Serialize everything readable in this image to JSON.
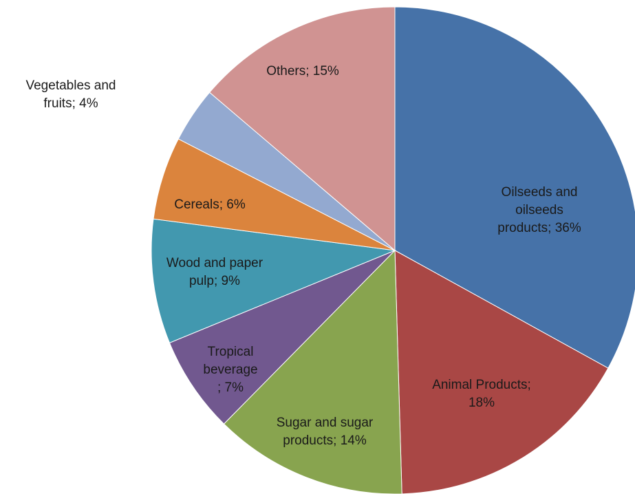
{
  "chart_data": {
    "type": "pie",
    "start_angle_deg": 0,
    "direction": "clockwise",
    "slices": [
      {
        "label": "Oilseeds and oilseeds products",
        "value": 36,
        "display": "Oilseeds and oilseeds\nproducts; 36%",
        "color": "#4672A8"
      },
      {
        "label": "Animal Products",
        "value": 18,
        "display": "Animal Products;\n18%",
        "color": "#A94745"
      },
      {
        "label": "Sugar and sugar products",
        "value": 14,
        "display": "Sugar and sugar\nproducts; 14%",
        "color": "#88A44F"
      },
      {
        "label": "Tropical beverage",
        "value": 7,
        "display": "Tropical\nbeverage\n; 7%",
        "color": "#71588F"
      },
      {
        "label": "Wood and paper pulp",
        "value": 9,
        "display": "Wood and paper\npulp; 9%",
        "color": "#4298AF"
      },
      {
        "label": "Cereals",
        "value": 6,
        "display": "Cereals; 6%",
        "color": "#DB843D"
      },
      {
        "label": "Vegetables and fruits",
        "value": 4,
        "display": "Vegetables and\nfruits; 4%",
        "color": "#93A9D0"
      },
      {
        "label": "Others",
        "value": 15,
        "display": "Others; 15%",
        "color": "#D09392"
      }
    ]
  }
}
